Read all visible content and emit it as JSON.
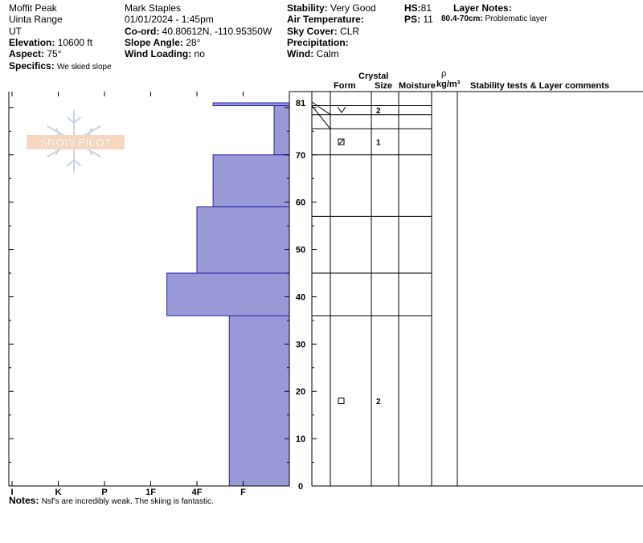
{
  "header": {
    "location": "Moffit Peak",
    "range": "Uinta Range",
    "state": "UT",
    "elevation_label": "Elevation:",
    "elevation_value": "10600 ft",
    "aspect_label": "Aspect:",
    "aspect_value": "75°",
    "specifics_label": "Specifics:",
    "specifics_value": "We skied slope",
    "observer": "Mark Staples",
    "datetime": "01/01/2024 - 1:45pm",
    "coord_label": "Co-ord:",
    "coord_value": "40.80612N, -110.95350W",
    "slope_label": "Slope Angle:",
    "slope_value": "28°",
    "wind_loading_label": "Wind Loading:",
    "wind_loading_value": "no",
    "stability_label": "Stability:",
    "stability_value": "Very Good",
    "air_temp_label": "Air Temperature:",
    "air_temp_value": "",
    "sky_label": "Sky Cover:",
    "sky_value": "CLR",
    "precip_label": "Precipitation:",
    "precip_value": "",
    "wind_label": "Wind:",
    "wind_value": "Calm",
    "hs_label": "HS:",
    "hs_value": "81",
    "ps_label": "PS:",
    "ps_value": "11",
    "layer_notes_label": "Layer Notes:",
    "layer_notes": [
      {
        "range": "80.4-70cm:",
        "text": "Problematic layer"
      }
    ]
  },
  "logo": {
    "text": "SNOW PILOT"
  },
  "table_headers": {
    "crystal": "Crystal",
    "form": "Form",
    "size": "Size",
    "moisture": "Moisture",
    "rho": "ρ",
    "density_unit": "kg/m³",
    "stability": "Stability tests & Layer comments"
  },
  "notes": {
    "label": "Notes:",
    "text": "Nsf's are incredibly weak. The skiing is fantastic."
  },
  "chart_data": {
    "type": "bar",
    "orientation": "horizontal-step",
    "x_categories": [
      "I",
      "K",
      "P",
      "1F",
      "4F",
      "F"
    ],
    "hardness_scale": {
      "I": 6,
      "K": 5,
      "P": 4,
      "1F": 3,
      "4F": 2,
      "F": 1
    },
    "ylim": [
      0,
      81
    ],
    "y_ticks": [
      0,
      10,
      20,
      30,
      40,
      50,
      60,
      70,
      81
    ],
    "bar_color": "#9999d8",
    "bar_stroke": "#2222aa",
    "layers": [
      {
        "top": 81.0,
        "bottom": 80.4,
        "hardness": 1.65
      },
      {
        "top": 80.4,
        "bottom": 70.0,
        "hardness": 0.33
      },
      {
        "top": 70.0,
        "bottom": 59.0,
        "hardness": 1.65
      },
      {
        "top": 59.0,
        "bottom": 45.0,
        "hardness": 2.0
      },
      {
        "top": 45.0,
        "bottom": 36.0,
        "hardness": 2.65
      },
      {
        "top": 36.0,
        "bottom": 0.0,
        "hardness": 1.3
      }
    ],
    "crystal_rows": [
      {
        "top": 80.4,
        "bottom": 78.5,
        "form": "precipitation-particle",
        "size": "2"
      },
      {
        "top": 78.5,
        "bottom": 75.5,
        "form": "",
        "size": ""
      },
      {
        "top": 75.5,
        "bottom": 70.0,
        "form": "faceted-rounded",
        "size": "1"
      },
      {
        "top": 70.0,
        "bottom": 57.0,
        "form": "",
        "size": ""
      },
      {
        "top": 57.0,
        "bottom": 45.0,
        "form": "",
        "size": ""
      },
      {
        "top": 45.0,
        "bottom": 36.0,
        "form": "",
        "size": ""
      },
      {
        "top": 36.0,
        "bottom": 0.0,
        "form": "faceted",
        "size": "2"
      }
    ]
  }
}
